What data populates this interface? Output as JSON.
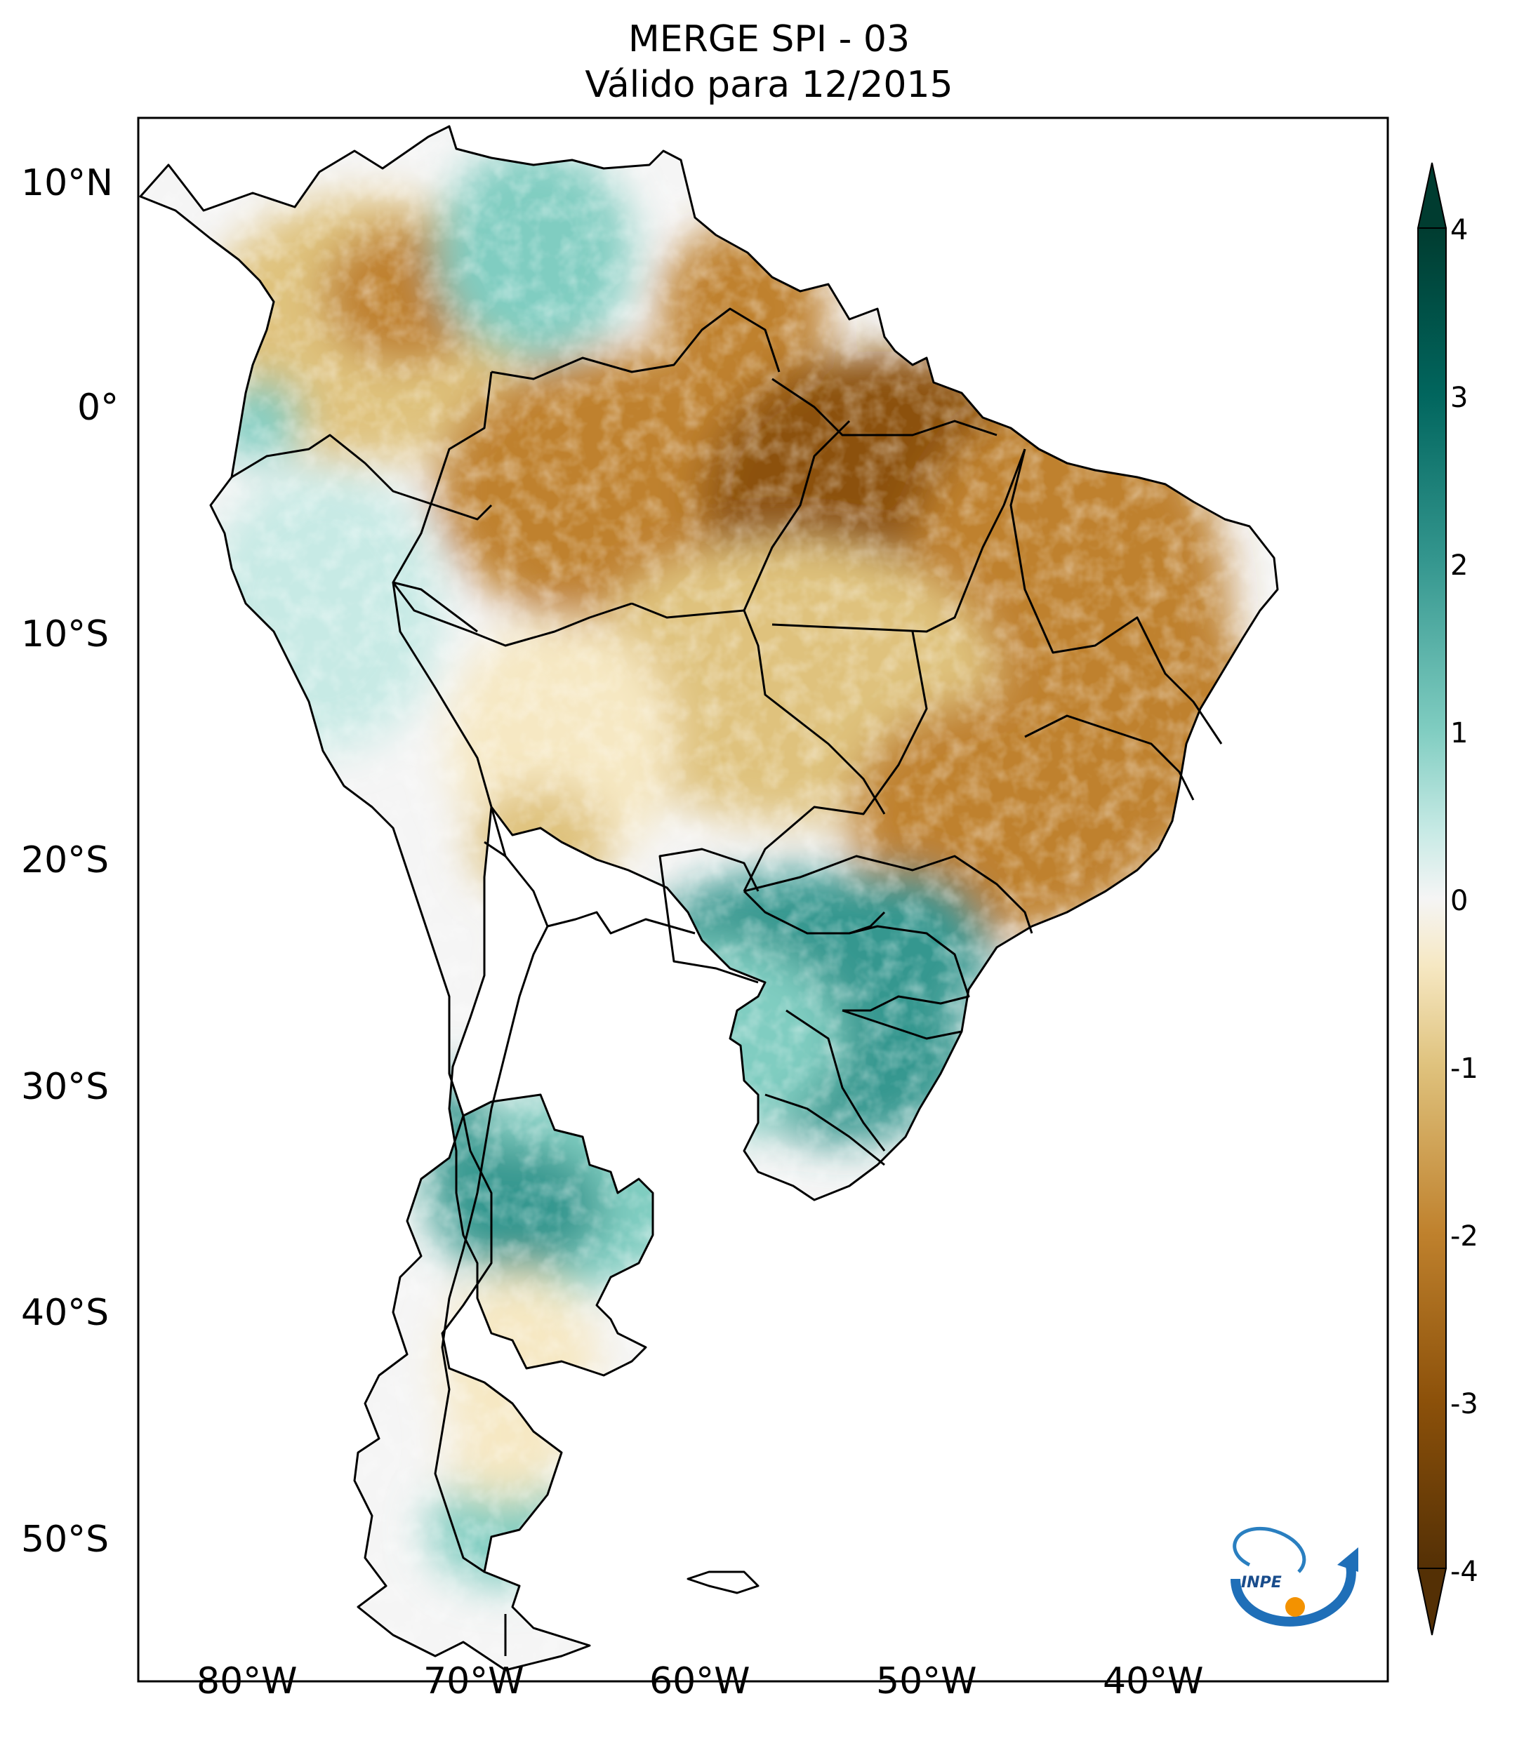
{
  "header": {
    "title": "MERGE   SPI - 03",
    "subtitle": "Válido para 12/2015"
  },
  "axes": {
    "lat_ticks": [
      "10°N",
      "0°",
      "10°S",
      "20°S",
      "30°S",
      "40°S",
      "50°S"
    ],
    "lon_ticks": [
      "80°W",
      "70°W",
      "60°W",
      "50°W",
      "40°W"
    ]
  },
  "colorbar": {
    "ticks": [
      "4",
      "3",
      "2",
      "1",
      "0",
      "-1",
      "-2",
      "-3",
      "-4"
    ],
    "range": [
      -4,
      4
    ],
    "extend": "both",
    "colors": {
      "wet_extreme": "#003c30",
      "wet_high": "#01665e",
      "wet_mid": "#35978f",
      "wet_low": "#80cdc1",
      "wet_faint": "#c7eae5",
      "neutral": "#f5f5f5",
      "dry_faint": "#f6e8c3",
      "dry_low": "#dfc27d",
      "dry_mid": "#bf812d",
      "dry_high": "#8c510a",
      "dry_extreme": "#543005"
    }
  },
  "logo": {
    "text": "INPE",
    "icon": "inpe-logo-icon"
  },
  "chart_data": {
    "type": "heatmap",
    "title": "MERGE   SPI - 03",
    "subtitle": "Válido para 12/2015",
    "xlim": [
      -85,
      -30
    ],
    "ylim": [
      -56,
      13
    ],
    "colorbar_range": [
      -4,
      4
    ],
    "colorbar_ticks": [
      -4,
      -3,
      -2,
      -1,
      0,
      1,
      2,
      3,
      4
    ]
  }
}
